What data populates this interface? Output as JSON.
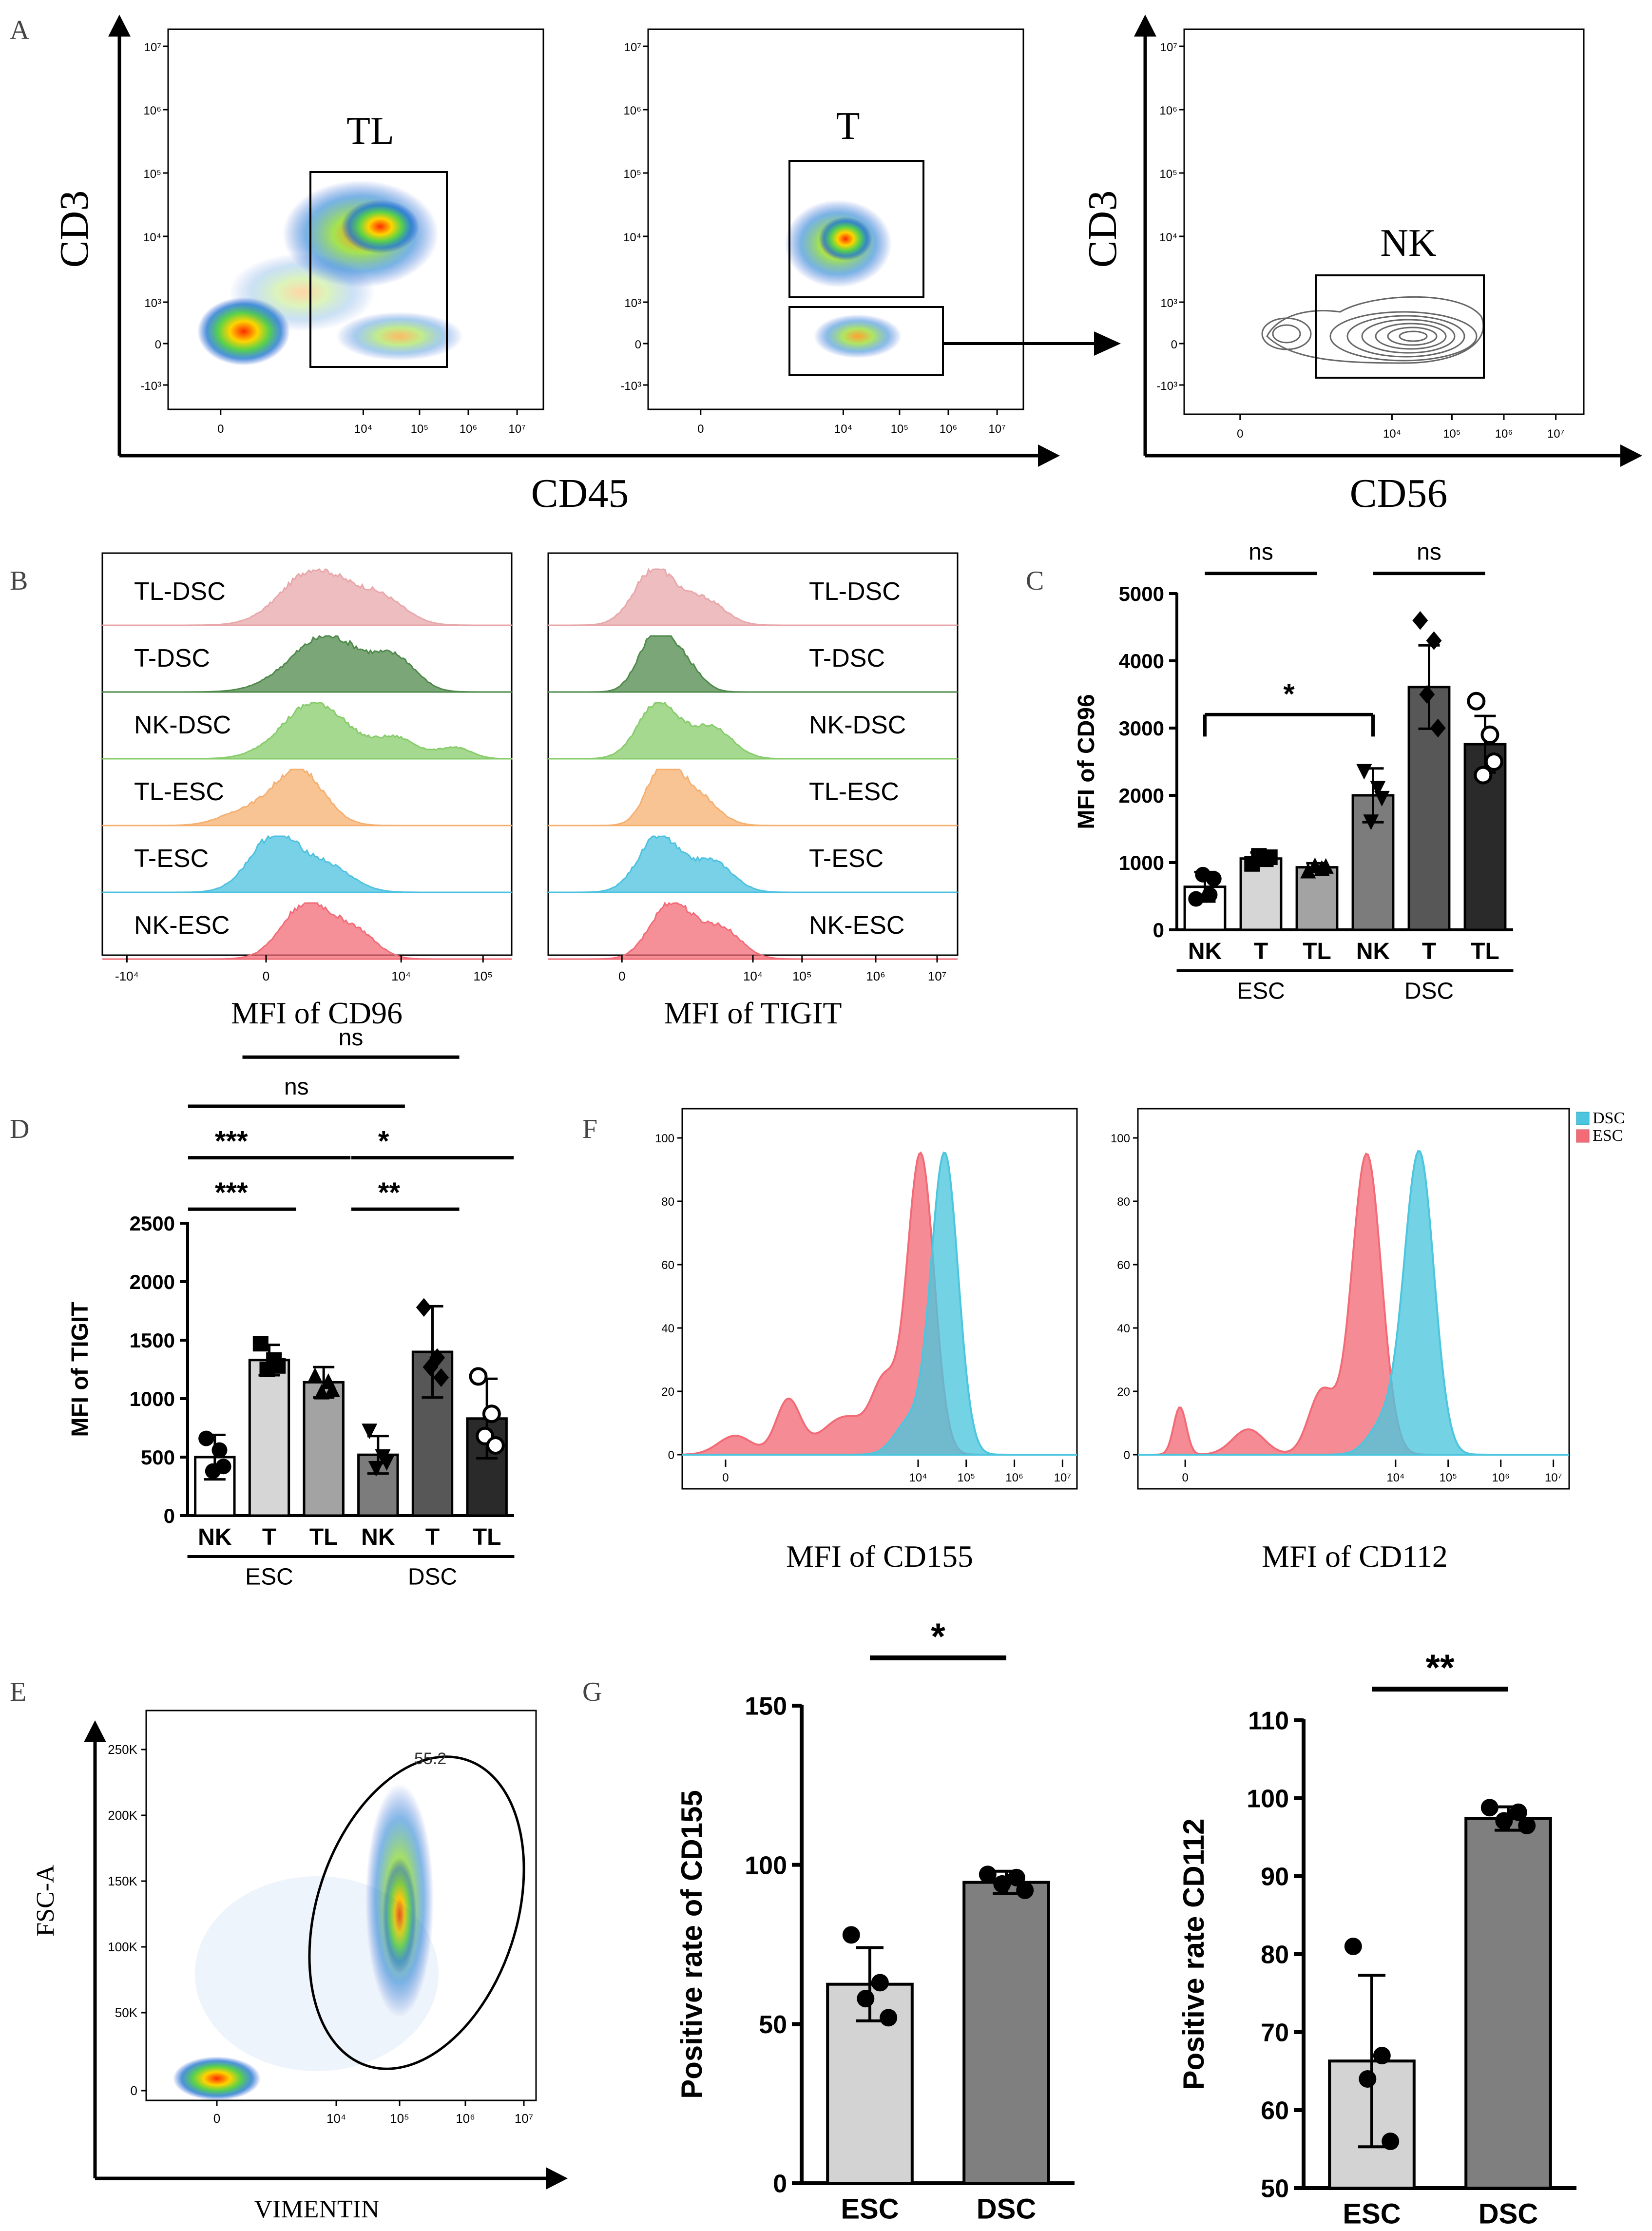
{
  "figure": {
    "panel_labels": {
      "A": "A",
      "B": "B",
      "C": "C",
      "D": "D",
      "E": "E",
      "F": "F",
      "G": "G"
    }
  },
  "colors": {
    "esc": "#f26b77",
    "dsc": "#4cc6de",
    "tl_dsc": "#e8a7aa",
    "t_dsc": "#4f8a4b",
    "nk_dsc": "#87cc6b",
    "tl_esc": "#f5b070",
    "t_esc": "#4cc2e0",
    "nk_esc": "#f26b77"
  },
  "panelA": {
    "plots": [
      {
        "gate_label": "TL"
      },
      {
        "gate_label": "T"
      },
      {
        "gate_label": "NK"
      }
    ],
    "y_ticks": [
      "10⁷",
      "10⁶",
      "10⁵",
      "10⁴",
      "10³",
      "0",
      "-10³"
    ],
    "x_ticks": [
      "0",
      "10⁴",
      "10⁵",
      "10⁶",
      "10⁷"
    ],
    "left_ylabel": "CD3",
    "left_xlabel": "CD45",
    "right_ylabel": "CD3",
    "right_xlabel": "CD56"
  },
  "panelB": {
    "rows": [
      "TL-DSC",
      "T-DSC",
      "NK-DSC",
      "TL-ESC",
      "T-ESC",
      "NK-ESC"
    ],
    "left_xticks": [
      "-10⁴",
      "0",
      "10⁴",
      "10⁵"
    ],
    "right_xticks": [
      "0",
      "10⁴",
      "10⁵",
      "10⁶",
      "10⁷"
    ],
    "left_xlabel": "MFI of CD96",
    "right_xlabel": "MFI of TIGIT"
  },
  "panelF": {
    "plots": [
      {
        "xlabel": "MFI of CD155",
        "esc_peak_log": 4.05,
        "dsc_peak_log": 4.55
      },
      {
        "xlabel": "MFI of CD112",
        "esc_peak_log": 3.45,
        "dsc_peak_log": 4.45
      }
    ],
    "y_ticks": [
      "100",
      "80",
      "60",
      "40",
      "20",
      "0"
    ],
    "x_ticks": [
      "0",
      "10⁴",
      "10⁵",
      "10⁶",
      "10⁷"
    ],
    "legend": [
      {
        "name": "DSC"
      },
      {
        "name": "ESC"
      }
    ]
  },
  "panelE": {
    "gate_value": "55.2",
    "y_ticks": [
      "250K",
      "200K",
      "150K",
      "100K",
      "50K",
      "0"
    ],
    "x_ticks": [
      "0",
      "10⁴",
      "10⁵",
      "10⁶",
      "10⁷"
    ],
    "ylabel": "FSC-A",
    "xlabel": "VIMENTIN"
  },
  "chart_data": [
    {
      "id": "C",
      "type": "bar",
      "ylabel": "MFI of CD96",
      "ylim": [
        0,
        5000
      ],
      "yticks": [
        0,
        1000,
        2000,
        3000,
        4000,
        5000
      ],
      "categories": [
        "NK",
        "T",
        "TL",
        "NK",
        "T",
        "TL"
      ],
      "groups": [
        {
          "name": "ESC",
          "members": [
            0,
            1,
            2
          ]
        },
        {
          "name": "DSC",
          "members": [
            3,
            4,
            5
          ]
        }
      ],
      "values": [
        640,
        1060,
        930,
        2000,
        3610,
        2760
      ],
      "errors": [
        220,
        90,
        60,
        400,
        620,
        420
      ],
      "bar_fills": [
        "#ffffff",
        "#d6d6d6",
        "#a3a3a3",
        "#7c7c7c",
        "#575757",
        "#2a2a2a"
      ],
      "markers": [
        "circle",
        "square",
        "triangle",
        "triangle-down",
        "diamond",
        "circle-open"
      ],
      "points": [
        [
          460,
          520,
          820,
          760
        ],
        [
          980,
          1050,
          1100,
          1080
        ],
        [
          880,
          920,
          960,
          950
        ],
        [
          2350,
          2100,
          1600,
          1950
        ],
        [
          4600,
          4300,
          3500,
          3000
        ],
        [
          3400,
          2900,
          2300,
          2500
        ]
      ],
      "significance": [
        {
          "from": 0,
          "to": 2,
          "label": "ns",
          "level": 5300
        },
        {
          "from": 3,
          "to": 5,
          "label": "ns",
          "level": 5300
        },
        {
          "from": 0,
          "to": 3,
          "label": "*",
          "level": 3200
        }
      ]
    },
    {
      "id": "D",
      "type": "bar",
      "ylabel": "MFI of TIGIT",
      "ylim": [
        0,
        2500
      ],
      "yticks": [
        0,
        500,
        1000,
        1500,
        2000,
        2500
      ],
      "categories": [
        "NK",
        "T",
        "TL",
        "NK",
        "T",
        "TL"
      ],
      "groups": [
        {
          "name": "ESC",
          "members": [
            0,
            1,
            2
          ]
        },
        {
          "name": "DSC",
          "members": [
            3,
            4,
            5
          ]
        }
      ],
      "values": [
        500,
        1330,
        1140,
        520,
        1400,
        830
      ],
      "errors": [
        190,
        130,
        130,
        160,
        390,
        340
      ],
      "bar_fills": [
        "#ffffff",
        "#d6d6d6",
        "#a3a3a3",
        "#7c7c7c",
        "#575757",
        "#2a2a2a"
      ],
      "markers": [
        "circle",
        "square",
        "triangle",
        "triangle-down",
        "diamond",
        "circle-open"
      ],
      "points": [
        [
          660,
          560,
          380,
          420
        ],
        [
          1470,
          1330,
          1250,
          1280
        ],
        [
          1200,
          1150,
          1060,
          1080
        ],
        [
          720,
          500,
          400,
          450
        ],
        [
          1780,
          1350,
          1270,
          1180
        ],
        [
          1190,
          870,
          680,
          600
        ]
      ],
      "significance": [
        {
          "from": 0,
          "to": 1,
          "label": "***",
          "level": 2620
        },
        {
          "from": 0,
          "to": 2,
          "label": "***",
          "level": 3060
        },
        {
          "from": 0,
          "to": 3,
          "label": "ns",
          "level": 3500
        },
        {
          "from": 3,
          "to": 4,
          "label": "**",
          "level": 2620
        },
        {
          "from": 3,
          "to": 5,
          "label": "*",
          "level": 3060
        },
        {
          "from": 1,
          "to": 4,
          "label": "ns",
          "level": 3920
        }
      ]
    },
    {
      "id": "G1",
      "type": "bar",
      "ylabel": "Positive rate of CD155",
      "ylim": [
        0,
        150
      ],
      "yticks": [
        0,
        50,
        100,
        150
      ],
      "categories": [
        "ESC",
        "DSC"
      ],
      "values": [
        62.5,
        94.5
      ],
      "errors": [
        11.5,
        3.5
      ],
      "bar_fills": [
        "#d3d3d3",
        "#7f7f7f"
      ],
      "points": [
        [
          78,
          63,
          58,
          52
        ],
        [
          97,
          96,
          94,
          92
        ]
      ],
      "significance": [
        {
          "from": 0,
          "to": 1,
          "label": "*",
          "level": 165
        }
      ]
    },
    {
      "id": "G2",
      "type": "bar",
      "ylabel": "Positive rate CD112",
      "ylim": [
        50,
        110
      ],
      "yticks": [
        50,
        60,
        70,
        80,
        90,
        100,
        110
      ],
      "categories": [
        "ESC",
        "DSC"
      ],
      "values": [
        66.3,
        97.4
      ],
      "errors": [
        11,
        1.5
      ],
      "bar_fills": [
        "#d3d3d3",
        "#7f7f7f"
      ],
      "points": [
        [
          81,
          67,
          64,
          56
        ],
        [
          98.8,
          98.2,
          97.1,
          96.5
        ]
      ],
      "significance": [
        {
          "from": 0,
          "to": 1,
          "label": "**",
          "level": 114
        }
      ]
    }
  ]
}
